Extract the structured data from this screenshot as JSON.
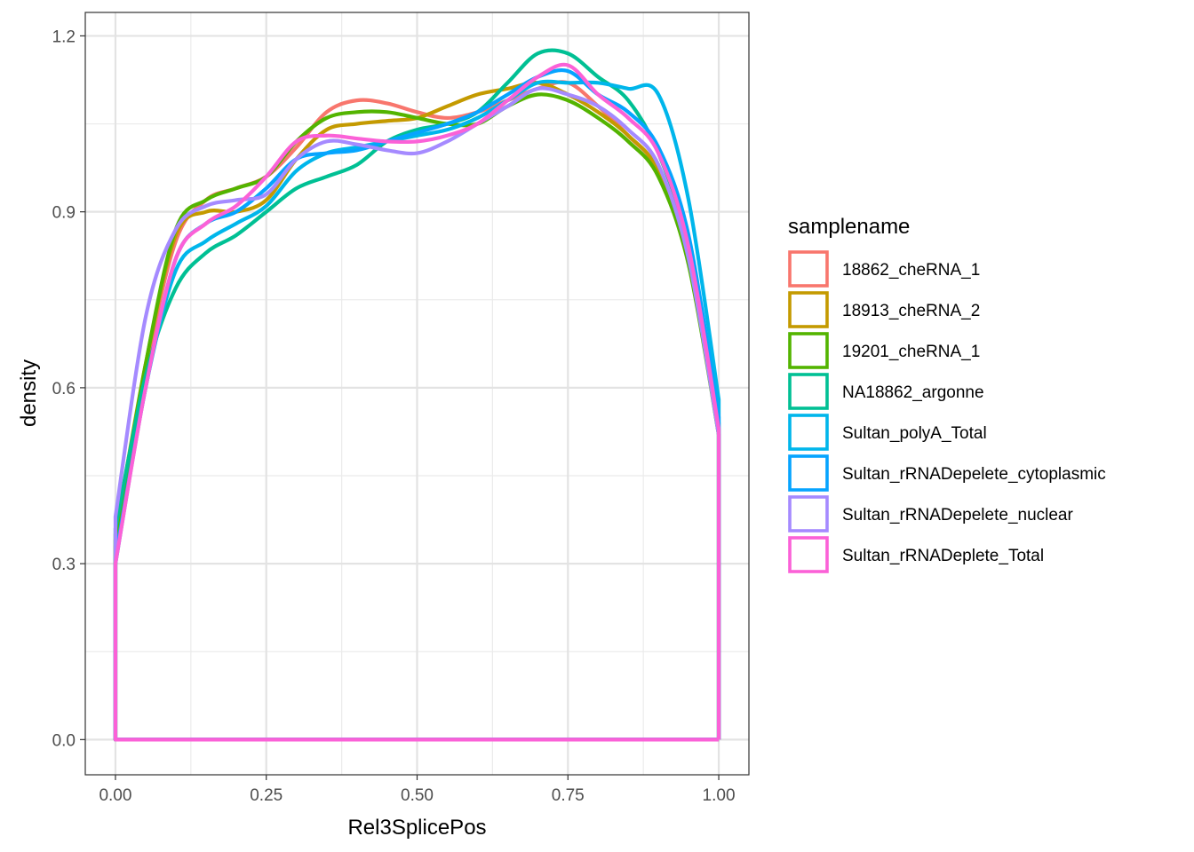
{
  "chart_data": {
    "type": "line",
    "xlabel": "Rel3SplicePos",
    "ylabel": "density",
    "xlim": [
      -0.05,
      1.05
    ],
    "ylim": [
      -0.06,
      1.24
    ],
    "x_ticks": [
      0.0,
      0.25,
      0.5,
      0.75,
      1.0
    ],
    "x_tick_labels": [
      "0.00",
      "0.25",
      "0.50",
      "0.75",
      "1.00"
    ],
    "y_ticks": [
      0.0,
      0.3,
      0.6,
      0.9,
      1.2
    ],
    "y_tick_labels": [
      "0.0",
      "0.3",
      "0.6",
      "0.9",
      "1.2"
    ],
    "grid": true,
    "legend": {
      "title": "samplename",
      "position": "right"
    },
    "series": [
      {
        "name": "18862_cheRNA_1",
        "color": "#F8766D",
        "x": [
          0,
          0.05,
          0.1,
          0.15,
          0.2,
          0.25,
          0.3,
          0.35,
          0.4,
          0.45,
          0.5,
          0.55,
          0.6,
          0.65,
          0.7,
          0.75,
          0.8,
          0.85,
          0.9,
          0.95,
          1.0
        ],
        "y": [
          0.33,
          0.63,
          0.85,
          0.92,
          0.94,
          0.96,
          1.01,
          1.07,
          1.09,
          1.085,
          1.07,
          1.06,
          1.07,
          1.09,
          1.11,
          1.12,
          1.08,
          1.03,
          0.97,
          0.82,
          0.52
        ]
      },
      {
        "name": "18913_cheRNA_2",
        "color": "#C49A00",
        "x": [
          0,
          0.05,
          0.1,
          0.15,
          0.2,
          0.25,
          0.3,
          0.35,
          0.4,
          0.45,
          0.5,
          0.55,
          0.6,
          0.65,
          0.7,
          0.75,
          0.8,
          0.85,
          0.9,
          0.95,
          1.0
        ],
        "y": [
          0.35,
          0.64,
          0.86,
          0.9,
          0.9,
          0.92,
          0.99,
          1.04,
          1.05,
          1.055,
          1.06,
          1.08,
          1.1,
          1.11,
          1.12,
          1.1,
          1.07,
          1.03,
          0.97,
          0.82,
          0.53
        ]
      },
      {
        "name": "19201_cheRNA_1",
        "color": "#53B400",
        "x": [
          0,
          0.05,
          0.1,
          0.15,
          0.2,
          0.25,
          0.3,
          0.35,
          0.4,
          0.45,
          0.5,
          0.55,
          0.6,
          0.65,
          0.7,
          0.75,
          0.8,
          0.85,
          0.9,
          0.95,
          1.0
        ],
        "y": [
          0.34,
          0.64,
          0.87,
          0.92,
          0.94,
          0.96,
          1.02,
          1.06,
          1.07,
          1.07,
          1.06,
          1.05,
          1.05,
          1.08,
          1.1,
          1.09,
          1.06,
          1.02,
          0.96,
          0.81,
          0.52
        ]
      },
      {
        "name": "NA18862_argonne",
        "color": "#00C094",
        "x": [
          0,
          0.05,
          0.1,
          0.15,
          0.2,
          0.25,
          0.3,
          0.35,
          0.4,
          0.45,
          0.5,
          0.55,
          0.6,
          0.65,
          0.7,
          0.75,
          0.8,
          0.85,
          0.9,
          0.95,
          1.0
        ],
        "y": [
          0.36,
          0.62,
          0.77,
          0.83,
          0.86,
          0.9,
          0.94,
          0.96,
          0.98,
          1.02,
          1.04,
          1.05,
          1.07,
          1.12,
          1.17,
          1.17,
          1.13,
          1.09,
          1.0,
          0.84,
          0.54
        ]
      },
      {
        "name": "Sultan_polyA_Total",
        "color": "#00B6EB",
        "x": [
          0,
          0.05,
          0.1,
          0.15,
          0.2,
          0.25,
          0.3,
          0.35,
          0.4,
          0.45,
          0.5,
          0.55,
          0.6,
          0.65,
          0.7,
          0.75,
          0.8,
          0.85,
          0.9,
          0.95,
          1.0
        ],
        "y": [
          0.3,
          0.6,
          0.8,
          0.85,
          0.88,
          0.91,
          0.97,
          1.0,
          1.01,
          1.02,
          1.03,
          1.04,
          1.06,
          1.09,
          1.12,
          1.12,
          1.12,
          1.11,
          1.1,
          0.92,
          0.58
        ]
      },
      {
        "name": "Sultan_rRNADepelete_cytoplasmic",
        "color": "#06A4FF",
        "x": [
          0,
          0.05,
          0.1,
          0.15,
          0.2,
          0.25,
          0.3,
          0.35,
          0.4,
          0.45,
          0.5,
          0.55,
          0.6,
          0.65,
          0.7,
          0.75,
          0.8,
          0.85,
          0.9,
          0.95,
          1.0
        ],
        "y": [
          0.31,
          0.6,
          0.82,
          0.88,
          0.9,
          0.94,
          0.99,
          1.0,
          1.005,
          1.02,
          1.035,
          1.05,
          1.07,
          1.1,
          1.13,
          1.14,
          1.1,
          1.07,
          1.01,
          0.86,
          0.55
        ]
      },
      {
        "name": "Sultan_rRNADepelete_nuclear",
        "color": "#A58AFF",
        "x": [
          0,
          0.05,
          0.1,
          0.15,
          0.2,
          0.25,
          0.3,
          0.35,
          0.4,
          0.45,
          0.5,
          0.55,
          0.6,
          0.65,
          0.7,
          0.75,
          0.8,
          0.85,
          0.9,
          0.95,
          1.0
        ],
        "y": [
          0.38,
          0.72,
          0.87,
          0.91,
          0.92,
          0.93,
          0.99,
          1.02,
          1.015,
          1.005,
          1.0,
          1.02,
          1.05,
          1.08,
          1.11,
          1.1,
          1.08,
          1.04,
          0.98,
          0.82,
          0.52
        ]
      },
      {
        "name": "Sultan_rRNADeplete_Total",
        "color": "#FB61D7",
        "x": [
          0,
          0.05,
          0.1,
          0.15,
          0.2,
          0.25,
          0.3,
          0.35,
          0.4,
          0.45,
          0.5,
          0.55,
          0.6,
          0.65,
          0.7,
          0.75,
          0.8,
          0.85,
          0.9,
          0.95,
          1.0
        ],
        "y": [
          0.3,
          0.6,
          0.82,
          0.88,
          0.91,
          0.96,
          1.02,
          1.03,
          1.025,
          1.02,
          1.02,
          1.03,
          1.05,
          1.09,
          1.13,
          1.15,
          1.1,
          1.06,
          1.0,
          0.84,
          0.53
        ]
      }
    ]
  }
}
